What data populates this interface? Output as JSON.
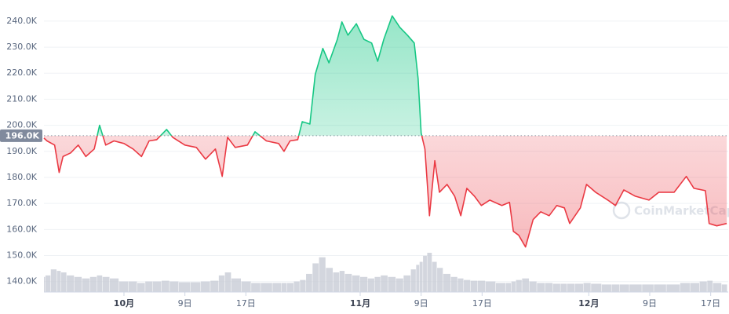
{
  "chart_data": {
    "type": "line",
    "x": [
      -10.5,
      -10.1,
      -9.1,
      -8.5,
      -8,
      -7,
      -6,
      -5,
      -3.9,
      -3.2,
      -2.4,
      -1.3,
      0,
      1.2,
      2.3,
      3.3,
      4.3,
      5.6,
      6.4,
      8,
      9.5,
      10.7,
      12,
      12.9,
      13.6,
      14.6,
      16.2,
      17.2,
      18.7,
      20.3,
      21,
      21.8,
      22.8,
      23.4,
      24.4,
      25.1,
      26.1,
      26.9,
      28,
      28.6,
      29.4,
      30.5,
      31.5,
      32.5,
      33.3,
      34.1,
      35.2,
      36.2,
      37.2,
      38.1,
      38.6,
      39,
      39.5,
      40.1,
      40.8,
      41.4,
      42.4,
      43.4,
      44.2,
      45,
      46,
      46.9,
      48,
      49.6,
      50.6,
      51.1,
      51.8,
      52.7,
      53.7,
      54.7,
      55.8,
      56.8,
      57.8,
      58.5,
      59.9,
      60.7,
      61.9,
      63.5,
      64.5,
      65.6,
      67.1,
      68.9,
      70.2,
      72.2,
      73.8,
      74.8,
      76.3,
      76.8,
      77.8,
      79.1
    ],
    "values": [
      195100,
      194000,
      192400,
      181900,
      188000,
      189400,
      192400,
      188000,
      190900,
      200000,
      192400,
      194000,
      193000,
      190900,
      188000,
      194000,
      194500,
      198400,
      195400,
      192400,
      191500,
      187000,
      190900,
      180400,
      195400,
      191500,
      192400,
      197500,
      194000,
      193000,
      190000,
      194000,
      194500,
      201400,
      200500,
      219500,
      229500,
      224000,
      233000,
      239700,
      234600,
      239000,
      233000,
      231600,
      224600,
      233000,
      242000,
      237600,
      234600,
      231600,
      218000,
      197000,
      190900,
      165300,
      186400,
      174300,
      177300,
      172800,
      165300,
      175800,
      172800,
      169200,
      171300,
      169200,
      170400,
      159300,
      157800,
      153300,
      163800,
      166800,
      165300,
      169200,
      168300,
      162300,
      168300,
      177300,
      174300,
      171300,
      169200,
      175200,
      172800,
      171300,
      174300,
      174300,
      180400,
      175800,
      174900,
      162300,
      161400,
      162300
    ],
    "volume": [
      20,
      22,
      30,
      28,
      26,
      22,
      20,
      18,
      20,
      22,
      20,
      18,
      14,
      14,
      12,
      14,
      14,
      15,
      14,
      13,
      13,
      14,
      15,
      22,
      26,
      18,
      14,
      12,
      12,
      12,
      12,
      12,
      14,
      16,
      24,
      38,
      46,
      32,
      26,
      28,
      24,
      22,
      20,
      18,
      20,
      22,
      20,
      18,
      22,
      30,
      36,
      40,
      48,
      52,
      40,
      32,
      24,
      20,
      18,
      16,
      15,
      15,
      14,
      12,
      12,
      14,
      16,
      18,
      14,
      12,
      12,
      11,
      11,
      11,
      11,
      12,
      11,
      10,
      10,
      10,
      10,
      10,
      10,
      10,
      12,
      12,
      14,
      15,
      12,
      10
    ],
    "baseline": {
      "value": 196000,
      "label": "196.0K"
    },
    "up_color": "#16c784",
    "down_color": "#ea3943",
    "volume_color": "#c8ccd6",
    "ylim": [
      136000,
      248100
    ],
    "yticks": [
      {
        "value": 140000,
        "label": "140.0K"
      },
      {
        "value": 150000,
        "label": "150.0K"
      },
      {
        "value": 160000,
        "label": "160.0K"
      },
      {
        "value": 170000,
        "label": "170.0K"
      },
      {
        "value": 180000,
        "label": "180.0K"
      },
      {
        "value": 190000,
        "label": "190.0K"
      },
      {
        "value": 200000,
        "label": "200.0K"
      },
      {
        "value": 210000,
        "label": "210.0K"
      },
      {
        "value": 220000,
        "label": "220.0K"
      },
      {
        "value": 230000,
        "label": "230.0K"
      },
      {
        "value": 240000,
        "label": "240.0K"
      }
    ],
    "xlim": [
      -10.5,
      79.3
    ],
    "xticks": [
      {
        "value": 0,
        "label": "10月"
      },
      {
        "value": 8,
        "label": "9日"
      },
      {
        "value": 16,
        "label": "17日"
      },
      {
        "value": 31,
        "label": "11月"
      },
      {
        "value": 39,
        "label": "9日"
      },
      {
        "value": 47,
        "label": "17日"
      },
      {
        "value": 61,
        "label": "12月"
      },
      {
        "value": 69,
        "label": "9日"
      },
      {
        "value": 77,
        "label": "17日"
      }
    ],
    "grid": true,
    "watermark": "CoinMarketCap"
  }
}
